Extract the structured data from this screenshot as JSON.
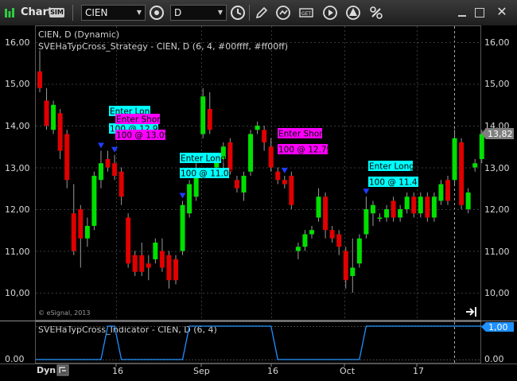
{
  "window": {
    "title": "Chart",
    "mode_badge": "SIM"
  },
  "toolbar": {
    "symbol": "CIEN",
    "interval": "D"
  },
  "price_pane": {
    "title": "CIEN, D (Dynamic)",
    "study": "SVEHaTypCross_Strategy - CIEN, D (6, 4, #00ffff, #ff00ff)",
    "copyright": "© eSignal, 2013",
    "y_ticks": [
      "16,00",
      "15,00",
      "14,00",
      "13,00",
      "12,00",
      "11,00",
      "10,00"
    ],
    "last_price": "13,82"
  },
  "indicator_pane": {
    "title": "SVEHaTypCross_Indicator - CIEN, D (6, 4)",
    "y_ticks": [
      "0.00",
      "0.00"
    ],
    "current_value": "1,00"
  },
  "time_axis": {
    "dyn_label": "Dyn",
    "ticks": [
      "16",
      "Sep",
      "16",
      "Oct",
      "17"
    ]
  },
  "signals": [
    {
      "kind": "long",
      "label": "Enter Long",
      "fill": "100 @ 12.95"
    },
    {
      "kind": "short",
      "label": "Enter Short",
      "fill": "100 @ 13.09"
    },
    {
      "kind": "long",
      "label": "Enter Long",
      "fill": "100 @ 11.02"
    },
    {
      "kind": "short",
      "label": "Enter Short",
      "fill": "100 @ 12.79"
    },
    {
      "kind": "long",
      "label": "Enter Long",
      "fill": "100 @ 11.41"
    }
  ],
  "colors": {
    "up": "#00e000",
    "down": "#e00000",
    "long": "#00ffff",
    "short": "#ff00ff",
    "indicator": "#1e90ff",
    "marker": "#1e3cff"
  },
  "chart_data": {
    "type": "candlestick",
    "ylim": [
      9.6,
      16.3
    ],
    "candles": [
      {
        "o": 15.3,
        "h": 15.8,
        "l": 14.8,
        "c": 14.9
      },
      {
        "o": 14.6,
        "h": 14.9,
        "l": 13.9,
        "c": 14.0
      },
      {
        "o": 13.9,
        "h": 14.6,
        "l": 13.8,
        "c": 14.5
      },
      {
        "o": 14.3,
        "h": 14.4,
        "l": 13.2,
        "c": 13.4
      },
      {
        "o": 13.8,
        "h": 13.9,
        "l": 12.5,
        "c": 12.7
      },
      {
        "o": 11.9,
        "h": 12.6,
        "l": 10.9,
        "c": 11.0
      },
      {
        "o": 12.0,
        "h": 12.1,
        "l": 10.6,
        "c": 11.3
      },
      {
        "o": 11.3,
        "h": 11.8,
        "l": 11.1,
        "c": 11.6
      },
      {
        "o": 11.6,
        "h": 12.9,
        "l": 11.5,
        "c": 12.8
      },
      {
        "o": 12.7,
        "h": 13.4,
        "l": 12.5,
        "c": 13.1
      },
      {
        "o": 13.2,
        "h": 13.4,
        "l": 12.9,
        "c": 13.0
      },
      {
        "o": 13.1,
        "h": 13.3,
        "l": 12.7,
        "c": 12.8
      },
      {
        "o": 12.9,
        "h": 13.0,
        "l": 12.1,
        "c": 12.3
      },
      {
        "o": 11.8,
        "h": 11.9,
        "l": 10.6,
        "c": 10.7
      },
      {
        "o": 10.9,
        "h": 11.0,
        "l": 10.4,
        "c": 10.5
      },
      {
        "o": 10.9,
        "h": 11.2,
        "l": 10.4,
        "c": 10.5
      },
      {
        "o": 10.7,
        "h": 10.9,
        "l": 10.3,
        "c": 10.6
      },
      {
        "o": 10.8,
        "h": 11.3,
        "l": 10.7,
        "c": 11.2
      },
      {
        "o": 11.0,
        "h": 11.3,
        "l": 10.5,
        "c": 10.6
      },
      {
        "o": 10.9,
        "h": 11.0,
        "l": 10.1,
        "c": 10.3
      },
      {
        "o": 10.8,
        "h": 10.9,
        "l": 10.2,
        "c": 10.3
      },
      {
        "o": 11.0,
        "h": 12.2,
        "l": 10.9,
        "c": 12.1
      },
      {
        "o": 11.9,
        "h": 12.7,
        "l": 11.8,
        "c": 12.6
      },
      {
        "o": 12.3,
        "h": 13.1,
        "l": 12.2,
        "c": 12.9
      },
      {
        "o": 13.8,
        "h": 14.9,
        "l": 13.7,
        "c": 14.7
      },
      {
        "o": 14.4,
        "h": 14.8,
        "l": 13.8,
        "c": 13.9
      },
      {
        "o": 13.0,
        "h": 13.3,
        "l": 12.8,
        "c": 13.2
      },
      {
        "o": 13.2,
        "h": 13.6,
        "l": 12.9,
        "c": 13.5
      },
      {
        "o": 13.6,
        "h": 13.7,
        "l": 12.8,
        "c": 12.9
      },
      {
        "o": 12.7,
        "h": 12.8,
        "l": 12.4,
        "c": 12.5
      },
      {
        "o": 12.4,
        "h": 12.9,
        "l": 12.2,
        "c": 12.8
      },
      {
        "o": 12.9,
        "h": 13.9,
        "l": 12.8,
        "c": 13.8
      },
      {
        "o": 13.9,
        "h": 14.1,
        "l": 13.8,
        "c": 14.0
      },
      {
        "o": 13.9,
        "h": 14.0,
        "l": 13.4,
        "c": 13.6
      },
      {
        "o": 13.5,
        "h": 13.7,
        "l": 12.9,
        "c": 13.0
      },
      {
        "o": 12.9,
        "h": 13.0,
        "l": 12.6,
        "c": 12.7
      },
      {
        "o": 12.7,
        "h": 12.8,
        "l": 12.5,
        "c": 12.6
      },
      {
        "o": 12.8,
        "h": 12.9,
        "l": 12.0,
        "c": 12.1
      },
      {
        "o": 11.0,
        "h": 11.2,
        "l": 10.8,
        "c": 11.1
      },
      {
        "o": 11.1,
        "h": 11.5,
        "l": 11.0,
        "c": 11.4
      },
      {
        "o": 11.4,
        "h": 11.6,
        "l": 11.3,
        "c": 11.5
      },
      {
        "o": 11.8,
        "h": 12.5,
        "l": 11.7,
        "c": 12.3
      },
      {
        "o": 12.3,
        "h": 12.4,
        "l": 11.3,
        "c": 11.5
      },
      {
        "o": 11.5,
        "h": 11.6,
        "l": 11.2,
        "c": 11.3
      },
      {
        "o": 11.4,
        "h": 11.5,
        "l": 10.9,
        "c": 11.1
      },
      {
        "o": 11.0,
        "h": 11.1,
        "l": 10.1,
        "c": 10.3
      },
      {
        "o": 10.4,
        "h": 11.3,
        "l": 10.0,
        "c": 10.6
      },
      {
        "o": 10.7,
        "h": 11.4,
        "l": 10.6,
        "c": 11.3
      },
      {
        "o": 11.4,
        "h": 12.3,
        "l": 11.3,
        "c": 12.0
      },
      {
        "o": 11.9,
        "h": 12.2,
        "l": 11.6,
        "c": 12.1
      },
      {
        "o": 11.8,
        "h": 11.9,
        "l": 11.7,
        "c": 11.8
      },
      {
        "o": 11.8,
        "h": 12.1,
        "l": 11.7,
        "c": 12.0
      },
      {
        "o": 12.2,
        "h": 12.3,
        "l": 11.7,
        "c": 11.8
      },
      {
        "o": 11.8,
        "h": 12.1,
        "l": 11.7,
        "c": 12.0
      },
      {
        "o": 12.0,
        "h": 12.4,
        "l": 11.9,
        "c": 12.3
      },
      {
        "o": 12.3,
        "h": 12.4,
        "l": 11.8,
        "c": 11.9
      },
      {
        "o": 11.9,
        "h": 12.4,
        "l": 11.8,
        "c": 12.3
      },
      {
        "o": 12.3,
        "h": 12.4,
        "l": 11.7,
        "c": 11.8
      },
      {
        "o": 11.8,
        "h": 12.4,
        "l": 11.7,
        "c": 12.3
      },
      {
        "o": 12.2,
        "h": 12.7,
        "l": 12.1,
        "c": 12.6
      },
      {
        "o": 12.7,
        "h": 12.8,
        "l": 12.1,
        "c": 12.2
      },
      {
        "o": 12.7,
        "h": 13.9,
        "l": 12.6,
        "c": 13.7
      },
      {
        "o": 13.6,
        "h": 13.7,
        "l": 12.0,
        "c": 12.1
      },
      {
        "o": 12.0,
        "h": 12.5,
        "l": 11.9,
        "c": 12.4
      },
      {
        "o": 13.0,
        "h": 13.2,
        "l": 12.9,
        "c": 13.1
      },
      {
        "o": 13.2,
        "h": 13.9,
        "l": 13.1,
        "c": 13.8
      }
    ],
    "signal_bars": [
      9,
      11,
      21,
      36,
      48
    ],
    "indicator_values": [
      0,
      0,
      0,
      0,
      0,
      0,
      0,
      0,
      0,
      0,
      1,
      1,
      0,
      0,
      0,
      0,
      0,
      0,
      0,
      0,
      0,
      0,
      1,
      1,
      1,
      1,
      1,
      1,
      1,
      1,
      1,
      1,
      1,
      1,
      1,
      0,
      0,
      0,
      0,
      0,
      0,
      0,
      0,
      0,
      0,
      0,
      0,
      0,
      1,
      1,
      1,
      1,
      1,
      1,
      1,
      1,
      1,
      1,
      1,
      1,
      1,
      1,
      1,
      1,
      1,
      1
    ]
  }
}
